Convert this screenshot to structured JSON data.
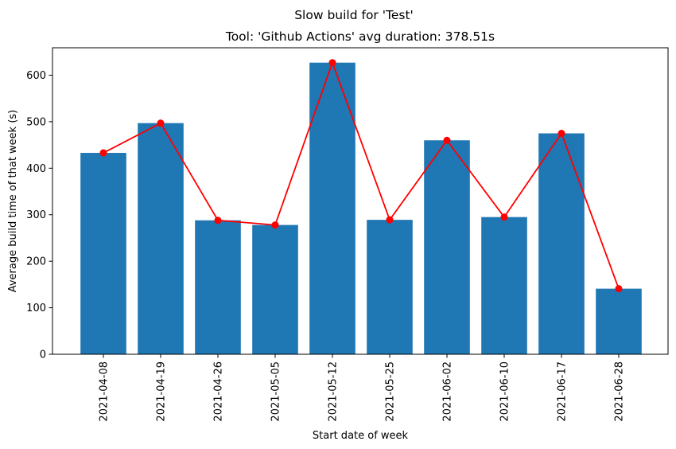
{
  "chart_data": {
    "type": "bar",
    "suptitle": "Slow build for 'Test'",
    "title": "Tool: 'Github Actions' avg duration: 378.51s",
    "xlabel": "Start date of week",
    "ylabel": "Average build time of that week (s)",
    "categories": [
      "2021-04-08",
      "2021-04-19",
      "2021-04-26",
      "2021-05-05",
      "2021-05-12",
      "2021-05-25",
      "2021-06-02",
      "2021-06-10",
      "2021-06-17",
      "2021-06-28"
    ],
    "series": [
      {
        "kind": "bar",
        "color": "#1f77b4",
        "values": [
          433,
          497,
          288,
          278,
          627,
          289,
          460,
          295,
          475,
          141
        ]
      },
      {
        "kind": "line",
        "color": "#ff0000",
        "marker": "circle",
        "values": [
          433,
          497,
          288,
          278,
          627,
          289,
          460,
          295,
          475,
          141
        ]
      }
    ],
    "ylim": [
      0,
      659
    ],
    "yticks": [
      0,
      100,
      200,
      300,
      400,
      500,
      600
    ],
    "grid": false,
    "legend": "none"
  }
}
